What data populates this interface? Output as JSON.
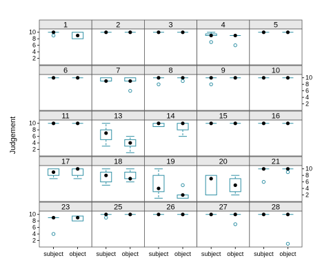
{
  "chart_data": {
    "type": "boxplot",
    "ylabel": "Judgement",
    "categories": [
      "subject",
      "object"
    ],
    "yticks": [
      2,
      4,
      6,
      8,
      10
    ],
    "ylim": [
      0,
      11
    ],
    "layout": "5 columns x 5 rows lattice",
    "colors": {
      "box": "#2e8fa4",
      "median": "#000000",
      "strip": "#e8e8e8",
      "frame": "#555555"
    },
    "panels": [
      {
        "label": "1",
        "boxes": [
          {
            "category": "subject",
            "q1": 10,
            "median": 10,
            "q3": 10,
            "whisker_low": 10,
            "whisker_high": 10,
            "outliers": [
              9
            ]
          },
          {
            "category": "object",
            "q1": 8,
            "median": 9,
            "q3": 10,
            "whisker_low": 8,
            "whisker_high": 10,
            "outliers": []
          }
        ]
      },
      {
        "label": "2",
        "boxes": [
          {
            "category": "subject",
            "q1": 10,
            "median": 10,
            "q3": 10,
            "whisker_low": 10,
            "whisker_high": 10,
            "outliers": []
          },
          {
            "category": "object",
            "q1": 10,
            "median": 10,
            "q3": 10,
            "whisker_low": 10,
            "whisker_high": 10,
            "outliers": []
          }
        ]
      },
      {
        "label": "3",
        "boxes": [
          {
            "category": "subject",
            "q1": 10,
            "median": 10,
            "q3": 10,
            "whisker_low": 10,
            "whisker_high": 10,
            "outliers": []
          },
          {
            "category": "object",
            "q1": 10,
            "median": 10,
            "q3": 10,
            "whisker_low": 10,
            "whisker_high": 10,
            "outliers": []
          }
        ]
      },
      {
        "label": "4",
        "boxes": [
          {
            "category": "subject",
            "q1": 9,
            "median": 9,
            "q3": 9.5,
            "whisker_low": 9,
            "whisker_high": 10,
            "outliers": [
              7
            ]
          },
          {
            "category": "object",
            "q1": 9,
            "median": 9,
            "q3": 9,
            "whisker_low": 9,
            "whisker_high": 9,
            "outliers": [
              6
            ]
          }
        ]
      },
      {
        "label": "5",
        "boxes": [
          {
            "category": "subject",
            "q1": 10,
            "median": 10,
            "q3": 10,
            "whisker_low": 10,
            "whisker_high": 10,
            "outliers": []
          },
          {
            "category": "object",
            "q1": 10,
            "median": 10,
            "q3": 10,
            "whisker_low": 10,
            "whisker_high": 10,
            "outliers": []
          }
        ]
      },
      {
        "label": "6",
        "boxes": [
          {
            "category": "subject",
            "q1": 10,
            "median": 10,
            "q3": 10,
            "whisker_low": 10,
            "whisker_high": 10,
            "outliers": []
          },
          {
            "category": "object",
            "q1": 10,
            "median": 10,
            "q3": 10,
            "whisker_low": 10,
            "whisker_high": 10,
            "outliers": []
          }
        ]
      },
      {
        "label": "7",
        "boxes": [
          {
            "category": "subject",
            "q1": 9,
            "median": 9,
            "q3": 10,
            "whisker_low": 9,
            "whisker_high": 10,
            "outliers": []
          },
          {
            "category": "object",
            "q1": 9,
            "median": 9,
            "q3": 10,
            "whisker_low": 9,
            "whisker_high": 10,
            "outliers": [
              6
            ]
          }
        ]
      },
      {
        "label": "8",
        "boxes": [
          {
            "category": "subject",
            "q1": 10,
            "median": 10,
            "q3": 10,
            "whisker_low": 10,
            "whisker_high": 10,
            "outliers": [
              8
            ]
          },
          {
            "category": "object",
            "q1": 10,
            "median": 10,
            "q3": 10,
            "whisker_low": 10,
            "whisker_high": 10,
            "outliers": [
              9
            ]
          }
        ]
      },
      {
        "label": "9",
        "boxes": [
          {
            "category": "subject",
            "q1": 10,
            "median": 10,
            "q3": 10,
            "whisker_low": 10,
            "whisker_high": 10,
            "outliers": [
              8
            ]
          },
          {
            "category": "object",
            "q1": 10,
            "median": 10,
            "q3": 10,
            "whisker_low": 10,
            "whisker_high": 10,
            "outliers": []
          }
        ]
      },
      {
        "label": "10",
        "boxes": [
          {
            "category": "subject",
            "q1": 10,
            "median": 10,
            "q3": 10,
            "whisker_low": 10,
            "whisker_high": 10,
            "outliers": []
          },
          {
            "category": "object",
            "q1": 10,
            "median": 10,
            "q3": 10,
            "whisker_low": 10,
            "whisker_high": 10,
            "outliers": []
          }
        ]
      },
      {
        "label": "11",
        "boxes": [
          {
            "category": "subject",
            "q1": 10,
            "median": 10,
            "q3": 10,
            "whisker_low": 10,
            "whisker_high": 10,
            "outliers": []
          },
          {
            "category": "object",
            "q1": 10,
            "median": 10,
            "q3": 10,
            "whisker_low": 10,
            "whisker_high": 10,
            "outliers": []
          }
        ]
      },
      {
        "label": "13",
        "boxes": [
          {
            "category": "subject",
            "q1": 5,
            "median": 7,
            "q3": 8,
            "whisker_low": 3,
            "whisker_high": 10,
            "outliers": []
          },
          {
            "category": "object",
            "q1": 3,
            "median": 4,
            "q3": 5,
            "whisker_low": 1,
            "whisker_high": 6,
            "outliers": []
          }
        ]
      },
      {
        "label": "14",
        "boxes": [
          {
            "category": "subject",
            "q1": 9,
            "median": 10,
            "q3": 10,
            "whisker_low": 9,
            "whisker_high": 10,
            "outliers": []
          },
          {
            "category": "object",
            "q1": 8,
            "median": 10,
            "q3": 10,
            "whisker_low": 6,
            "whisker_high": 10,
            "outliers": []
          }
        ]
      },
      {
        "label": "15",
        "boxes": [
          {
            "category": "subject",
            "q1": 10,
            "median": 10,
            "q3": 10,
            "whisker_low": 10,
            "whisker_high": 10,
            "outliers": []
          },
          {
            "category": "object",
            "q1": 10,
            "median": 10,
            "q3": 10,
            "whisker_low": 10,
            "whisker_high": 10,
            "outliers": []
          }
        ]
      },
      {
        "label": "16",
        "boxes": [
          {
            "category": "subject",
            "q1": 10,
            "median": 10,
            "q3": 10,
            "whisker_low": 10,
            "whisker_high": 10,
            "outliers": []
          },
          {
            "category": "object",
            "q1": 10,
            "median": 10,
            "q3": 10,
            "whisker_low": 10,
            "whisker_high": 10,
            "outliers": []
          }
        ]
      },
      {
        "label": "17",
        "boxes": [
          {
            "category": "subject",
            "q1": 8,
            "median": 9,
            "q3": 10,
            "whisker_low": 7,
            "whisker_high": 10,
            "outliers": []
          },
          {
            "category": "object",
            "q1": 8,
            "median": 10,
            "q3": 10,
            "whisker_low": 7,
            "whisker_high": 10,
            "outliers": []
          }
        ]
      },
      {
        "label": "18",
        "boxes": [
          {
            "category": "subject",
            "q1": 6,
            "median": 8,
            "q3": 9,
            "whisker_low": 5,
            "whisker_high": 10,
            "outliers": []
          },
          {
            "category": "object",
            "q1": 7,
            "median": 7,
            "q3": 9,
            "whisker_low": 6,
            "whisker_high": 10,
            "outliers": []
          }
        ]
      },
      {
        "label": "19",
        "boxes": [
          {
            "category": "subject",
            "q1": 3,
            "median": 4,
            "q3": 8,
            "whisker_low": 1,
            "whisker_high": 10,
            "outliers": []
          },
          {
            "category": "object",
            "q1": 1,
            "median": 2,
            "q3": 2,
            "whisker_low": 1,
            "whisker_high": 2,
            "outliers": [
              5
            ]
          }
        ]
      },
      {
        "label": "20",
        "boxes": [
          {
            "category": "subject",
            "q1": 2,
            "median": 7,
            "q3": 8,
            "whisker_low": 2,
            "whisker_high": 8,
            "outliers": []
          },
          {
            "category": "object",
            "q1": 3,
            "median": 5,
            "q3": 7,
            "whisker_low": 2,
            "whisker_high": 8,
            "outliers": []
          }
        ]
      },
      {
        "label": "21",
        "boxes": [
          {
            "category": "subject",
            "q1": 10,
            "median": 10,
            "q3": 10,
            "whisker_low": 10,
            "whisker_high": 10,
            "outliers": [
              6
            ]
          },
          {
            "category": "object",
            "q1": 10,
            "median": 10,
            "q3": 10,
            "whisker_low": 10,
            "whisker_high": 10,
            "outliers": [
              9
            ]
          }
        ]
      },
      {
        "label": "23",
        "boxes": [
          {
            "category": "subject",
            "q1": 9,
            "median": 9,
            "q3": 9,
            "whisker_low": 9,
            "whisker_high": 9,
            "outliers": [
              4
            ]
          },
          {
            "category": "object",
            "q1": 8,
            "median": 9,
            "q3": 9.5,
            "whisker_low": 8,
            "whisker_high": 9.5,
            "outliers": []
          }
        ]
      },
      {
        "label": "25",
        "boxes": [
          {
            "category": "subject",
            "q1": 10,
            "median": 10,
            "q3": 10,
            "whisker_low": 10,
            "whisker_high": 10,
            "outliers": [
              9
            ]
          },
          {
            "category": "object",
            "q1": 10,
            "median": 10,
            "q3": 10,
            "whisker_low": 10,
            "whisker_high": 10,
            "outliers": []
          }
        ]
      },
      {
        "label": "26",
        "boxes": [
          {
            "category": "subject",
            "q1": 10,
            "median": 10,
            "q3": 10,
            "whisker_low": 10,
            "whisker_high": 10,
            "outliers": []
          },
          {
            "category": "object",
            "q1": 10,
            "median": 10,
            "q3": 10,
            "whisker_low": 10,
            "whisker_high": 10,
            "outliers": []
          }
        ]
      },
      {
        "label": "27",
        "boxes": [
          {
            "category": "subject",
            "q1": 10,
            "median": 10,
            "q3": 10,
            "whisker_low": 10,
            "whisker_high": 10,
            "outliers": []
          },
          {
            "category": "object",
            "q1": 10,
            "median": 10,
            "q3": 10,
            "whisker_low": 10,
            "whisker_high": 10,
            "outliers": [
              7
            ]
          }
        ]
      },
      {
        "label": "28",
        "boxes": [
          {
            "category": "subject",
            "q1": 10,
            "median": 10,
            "q3": 10,
            "whisker_low": 10,
            "whisker_high": 10,
            "outliers": []
          },
          {
            "category": "object",
            "q1": 10,
            "median": 10,
            "q3": 10,
            "whisker_low": 10,
            "whisker_high": 10,
            "outliers": [
              1
            ]
          }
        ]
      }
    ]
  }
}
